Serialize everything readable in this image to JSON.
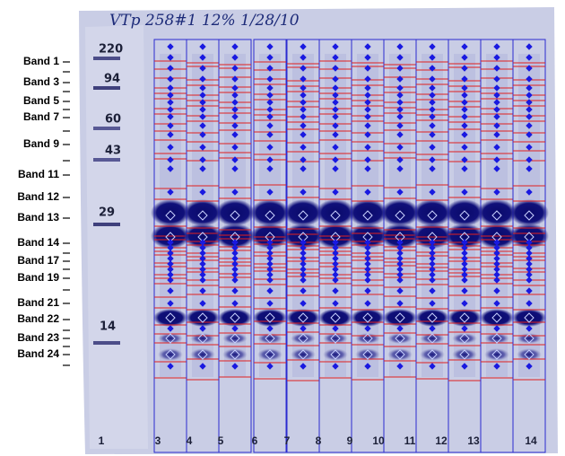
{
  "header": {
    "annotation": "VTp 258#1   12%   1/28/10"
  },
  "markers": [
    "220",
    "94",
    "60",
    "43",
    "29",
    "14"
  ],
  "band_labels": [
    "Band 1",
    "Band 3",
    "Band 5",
    "Band 7",
    "Band 9",
    "Band 11",
    "Band 12",
    "Band 13",
    "Band 14",
    "Band 17",
    "Band 19",
    "Band 21",
    "Band 22",
    "Band 23",
    "Band 24"
  ],
  "lanes": [
    "1",
    "3",
    "4",
    "5",
    "6",
    "7",
    "8",
    "9",
    "10",
    "11",
    "12",
    "13",
    "14"
  ]
}
